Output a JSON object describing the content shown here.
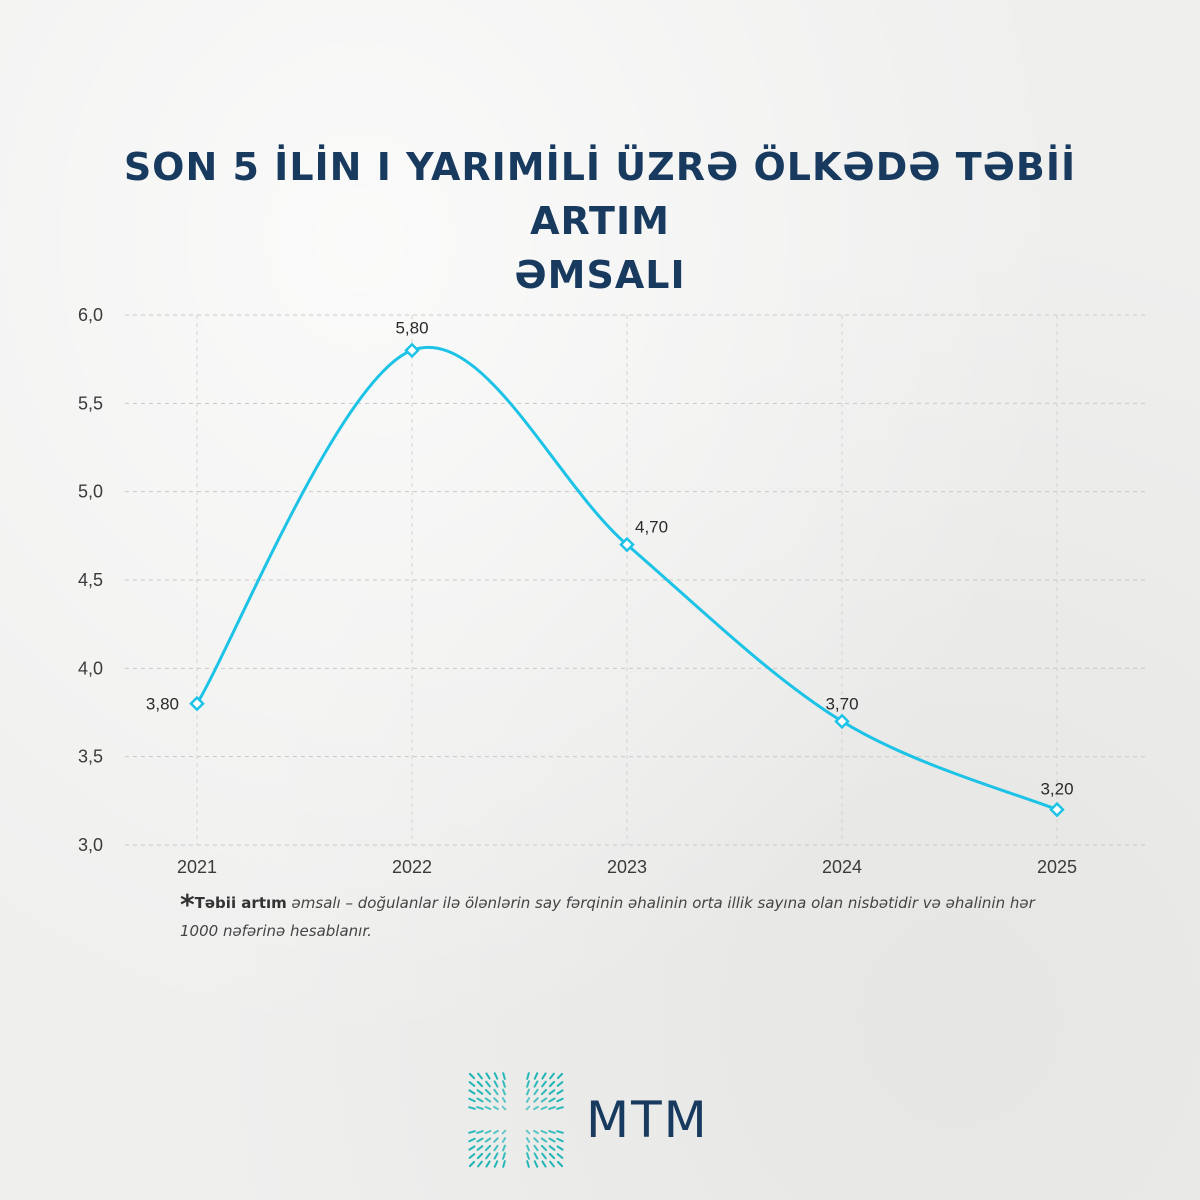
{
  "title_line1": "SON 5 İLİN I YARIMİLİ ÜZRƏ ÖLKƏDƏ TƏBİİ ARTIM",
  "title_line2": "ƏMSALI",
  "chart_data": {
    "type": "line",
    "x": [
      "2021",
      "2022",
      "2023",
      "2024",
      "2025"
    ],
    "series": [
      {
        "values": [
          3.8,
          5.8,
          4.7,
          3.7,
          3.2
        ],
        "labels": [
          "3,80",
          "5,80",
          "4,70",
          "3,70",
          "3,20"
        ]
      }
    ],
    "yticks": [
      "3,0",
      "3,5",
      "4,0",
      "4,5",
      "5,0",
      "5,5",
      "6,0"
    ],
    "ylim": [
      3.0,
      6.0
    ],
    "grid": true,
    "line_color": "#1cc3e6",
    "marker": "diamond"
  },
  "footnote": {
    "star": "*",
    "term": "Təbii artım",
    "text": " əmsalı – doğulanlar ilə ölənlərin say fərqinin  əhalinin orta illik sayına olan nisbətidir və əhalinin hər 1000 nəfərinə hesablanır."
  },
  "logo": {
    "text": "MTM",
    "color": "#173a5e",
    "accent": "#1fb5b5"
  }
}
